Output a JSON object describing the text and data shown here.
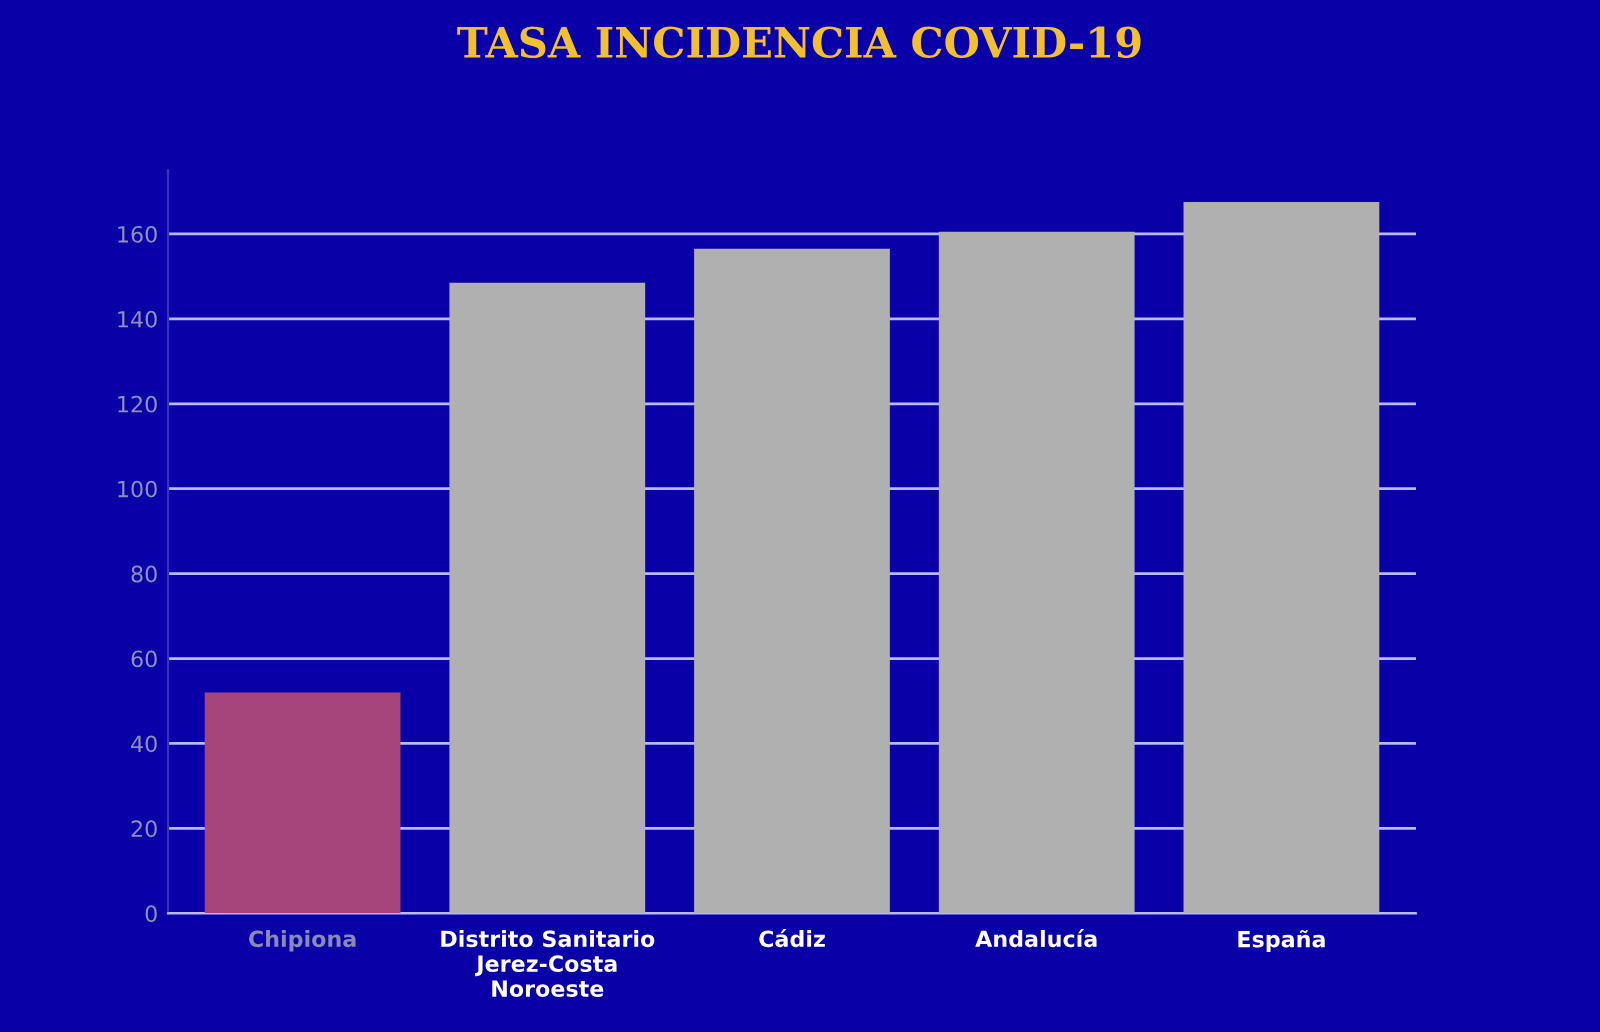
{
  "chart_data": {
    "type": "bar",
    "title": "TASA INCIDENCIA COVID-19",
    "categories": [
      "Chipiona",
      "Distrito Sanitario Jerez-Costa Noroeste",
      "Cádiz",
      "Andalucía",
      "España"
    ],
    "values": [
      52,
      148.5,
      156.5,
      160.5,
      167.5
    ],
    "colors": [
      "#a6457c",
      "#b0b0b0",
      "#b0b0b0",
      "#b0b0b0",
      "#b0b0b0"
    ],
    "ylim": [
      0,
      175
    ],
    "yticks": [
      0,
      20,
      40,
      60,
      80,
      100,
      120,
      140,
      160
    ],
    "grid": "y",
    "legend": false
  }
}
